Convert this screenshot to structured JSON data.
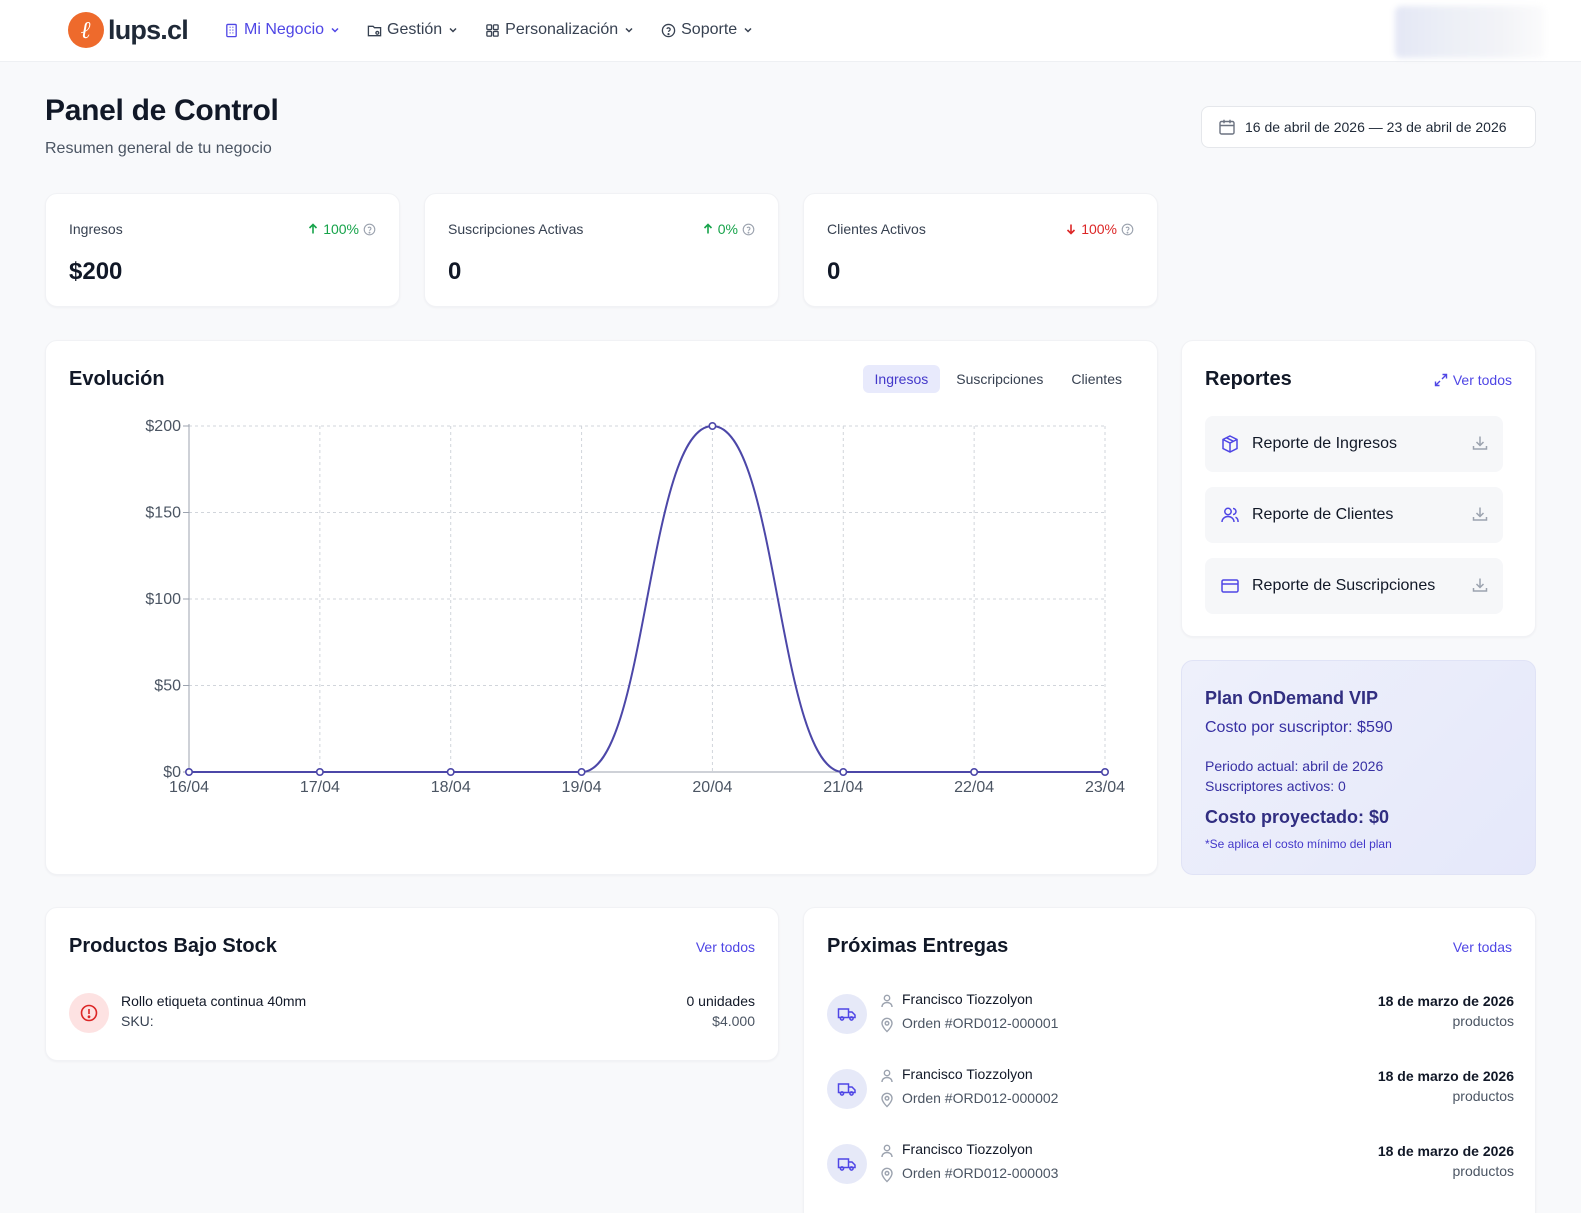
{
  "brand": {
    "name": "lups.cl",
    "mark": "ℓ"
  },
  "nav": {
    "items": [
      {
        "label": "Mi Negocio",
        "icon": "building-icon",
        "active": true
      },
      {
        "label": "Gestión",
        "icon": "folder-icon",
        "active": false
      },
      {
        "label": "Personalización",
        "icon": "grid-icon",
        "active": false
      },
      {
        "label": "Soporte",
        "icon": "help-circle-icon",
        "active": false
      }
    ]
  },
  "header": {
    "title": "Panel de Control",
    "subtitle": "Resumen general de tu negocio",
    "date_range": "16 de abril de 2026 — 23 de abril de 2026"
  },
  "stats": [
    {
      "label": "Ingresos",
      "value": "$200",
      "change": "100%",
      "direction": "up"
    },
    {
      "label": "Suscripciones Activas",
      "value": "0",
      "change": "0%",
      "direction": "up"
    },
    {
      "label": "Clientes Activos",
      "value": "0",
      "change": "100%",
      "direction": "down"
    }
  ],
  "evolution": {
    "title": "Evolución",
    "tabs": [
      "Ingresos",
      "Suscripciones",
      "Clientes"
    ],
    "active_tab": "Ingresos"
  },
  "chart_data": {
    "type": "line",
    "x": [
      "16/04",
      "17/04",
      "18/04",
      "19/04",
      "20/04",
      "21/04",
      "22/04",
      "23/04"
    ],
    "series": [
      {
        "values": [
          0,
          0,
          0,
          0,
          200,
          0,
          0,
          0
        ]
      }
    ],
    "ylim": [
      0,
      200
    ],
    "yticks": [
      0,
      50,
      100,
      150,
      200
    ],
    "ytick_labels": [
      "$0",
      "$50",
      "$100",
      "$150",
      "$200"
    ],
    "grid": true,
    "line_color": "#4c47a8"
  },
  "reports": {
    "title": "Reportes",
    "link": "Ver todos",
    "items": [
      {
        "label": "Reporte de Ingresos",
        "icon": "package-icon"
      },
      {
        "label": "Reporte de Clientes",
        "icon": "users-icon"
      },
      {
        "label": "Reporte de Suscripciones",
        "icon": "credit-card-icon"
      }
    ]
  },
  "plan": {
    "title": "Plan OnDemand VIP",
    "cost": "Costo por suscriptor: $590",
    "period": "Periodo actual: abril de 2026",
    "subscribers": "Suscriptores activos: 0",
    "projected": "Costo proyectado: $0",
    "note": "*Se aplica el costo mínimo del plan"
  },
  "low_stock": {
    "title": "Productos Bajo Stock",
    "link": "Ver todos",
    "items": [
      {
        "name": "Rollo etiqueta continua 40mm",
        "sku": "SKU:",
        "qty": "0 unidades",
        "price": "$4.000"
      }
    ]
  },
  "deliveries": {
    "title": "Próximas Entregas",
    "link": "Ver todas",
    "items": [
      {
        "name": "Francisco Tiozzolyon",
        "order": "Orden #ORD012-000001",
        "date": "18 de marzo de 2026",
        "items": "productos"
      },
      {
        "name": "Francisco Tiozzolyon",
        "order": "Orden #ORD012-000002",
        "date": "18 de marzo de 2026",
        "items": "productos"
      },
      {
        "name": "Francisco Tiozzolyon",
        "order": "Orden #ORD012-000003",
        "date": "18 de marzo de 2026",
        "items": "productos"
      }
    ]
  },
  "colors": {
    "accent": "#4f46e5",
    "positive": "#16a34a",
    "negative": "#dc2626",
    "brand": "#ee6a2c"
  }
}
